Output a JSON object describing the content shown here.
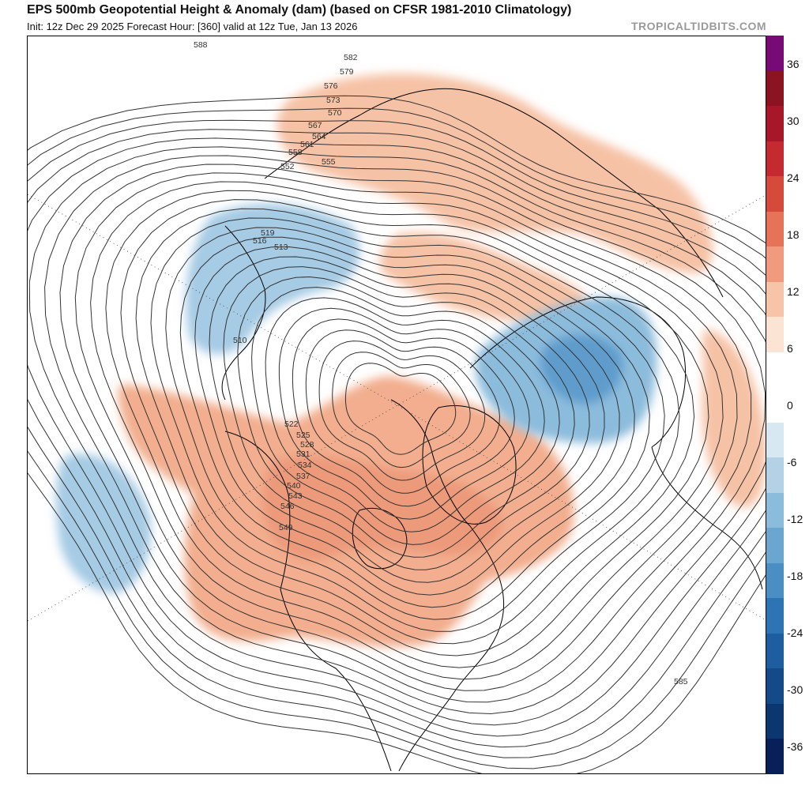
{
  "header": {
    "title": "EPS 500mb Geopotential Height & Anomaly (dam) (based on CFSR 1981-2010 Climatology)",
    "subtitle": "Init: 12z Dec 29 2025   Forecast Hour: [360]   valid at 12z Tue, Jan 13 2026",
    "brand": "TROPICALTIDBITS.COM"
  },
  "colorbar": {
    "tick_labels": [
      "36",
      "30",
      "24",
      "18",
      "12",
      "6",
      "0",
      "-6",
      "-12",
      "-18",
      "-24",
      "-30",
      "-36"
    ],
    "colors": [
      "#780a78",
      "#8c1420",
      "#a8162a",
      "#c42a30",
      "#d64a3c",
      "#e67258",
      "#f19a7e",
      "#f7c4aa",
      "#fbe4d4",
      "#ffffff",
      "#ffffff",
      "#d7e8f2",
      "#b4d2e6",
      "#8cbcdc",
      "#6aa6d0",
      "#4a8ec4",
      "#2e74b4",
      "#1e5ea0",
      "#144a88",
      "#0c3670",
      "#08205a"
    ]
  },
  "map": {
    "contour_labels": [
      "588",
      "582",
      "579",
      "576",
      "573",
      "570",
      "567",
      "564",
      "561",
      "558",
      "555",
      "552",
      "549",
      "546",
      "543",
      "540",
      "537",
      "534",
      "531",
      "528",
      "525",
      "522",
      "519",
      "516",
      "513",
      "510",
      "585"
    ],
    "anomaly_colors": {
      "positive": "#f4b89a",
      "positive_strong": "#ec9a78",
      "negative": "#a6cbe4",
      "negative_strong": "#6fa8d4"
    }
  }
}
